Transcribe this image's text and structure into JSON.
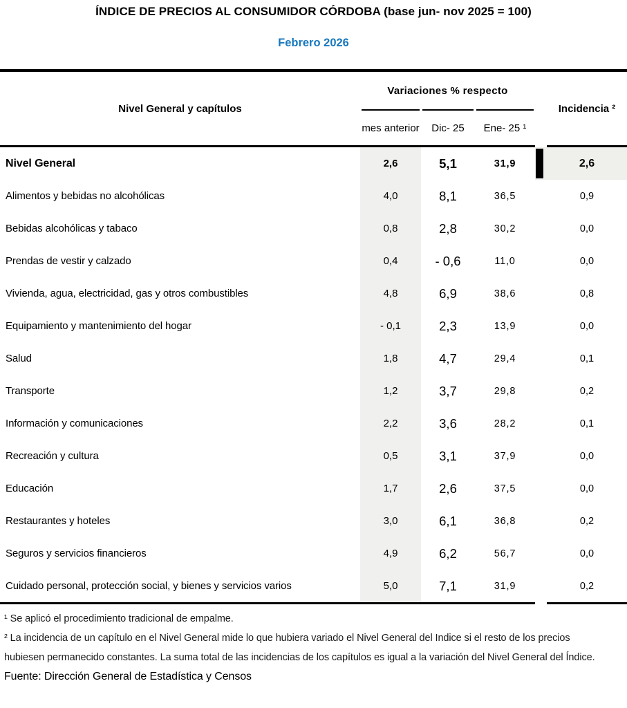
{
  "title": "ÍNDICE DE PRECIOS AL CONSUMIDOR CÓRDOBA (base jun- nov 2025 = 100)",
  "subtitle": "Febrero 2026",
  "table": {
    "row_header": "Nivel General y capítulos",
    "col_group_header": "Variaciones % respecto",
    "columns": [
      "mes anterior",
      "Dic- 25",
      "Ene- 25 ¹",
      "Incidencia ²"
    ],
    "rows": [
      {
        "label": "Nivel General",
        "mes_anterior": "2,6",
        "dic25": "5,1",
        "ene25": "31,9",
        "incidencia": "2,6",
        "emphasis": true
      },
      {
        "label": "Alimentos y bebidas no alcohólicas",
        "mes_anterior": "4,0",
        "dic25": "8,1",
        "ene25": "36,5",
        "incidencia": "0,9"
      },
      {
        "label": "Bebidas alcohólicas y tabaco",
        "mes_anterior": "0,8",
        "dic25": "2,8",
        "ene25": "30,2",
        "incidencia": "0,0"
      },
      {
        "label": "Prendas de vestir y calzado",
        "mes_anterior": "0,4",
        "dic25": "- 0,6",
        "ene25": "11,0",
        "incidencia": "0,0"
      },
      {
        "label": "Vivienda, agua, electricidad, gas y otros combustibles",
        "mes_anterior": "4,8",
        "dic25": "6,9",
        "ene25": "38,6",
        "incidencia": "0,8"
      },
      {
        "label": "Equipamiento y mantenimiento del hogar",
        "mes_anterior": "- 0,1",
        "dic25": "2,3",
        "ene25": "13,9",
        "incidencia": "0,0"
      },
      {
        "label": "Salud",
        "mes_anterior": "1,8",
        "dic25": "4,7",
        "ene25": "29,4",
        "incidencia": "0,1"
      },
      {
        "label": "Transporte",
        "mes_anterior": "1,2",
        "dic25": "3,7",
        "ene25": "29,8",
        "incidencia": "0,2"
      },
      {
        "label": "Información y comunicaciones",
        "mes_anterior": "2,2",
        "dic25": "3,6",
        "ene25": "28,2",
        "incidencia": "0,1"
      },
      {
        "label": "Recreación y cultura",
        "mes_anterior": "0,5",
        "dic25": "3,1",
        "ene25": "37,9",
        "incidencia": "0,0"
      },
      {
        "label": "Educación",
        "mes_anterior": "1,7",
        "dic25": "2,6",
        "ene25": "37,5",
        "incidencia": "0,0"
      },
      {
        "label": "Restaurantes y hoteles",
        "mes_anterior": "3,0",
        "dic25": "6,1",
        "ene25": "36,8",
        "incidencia": "0,2"
      },
      {
        "label": "Seguros y servicios financieros",
        "mes_anterior": "4,9",
        "dic25": "6,2",
        "ene25": "56,7",
        "incidencia": "0,0"
      },
      {
        "label": "Cuidado personal, protección social, y bienes y servicios varios",
        "mes_anterior": "5,0",
        "dic25": "7,1",
        "ene25": "31,9",
        "incidencia": "0,2"
      }
    ]
  },
  "footnotes": [
    "¹ Se aplicó el procedimiento tradicional de empalme.",
    "² La incidencia de un capítulo en el Nivel General mide lo que hubiera variado el Nivel General del Indice si el resto de los precios hubiesen permanecido constantes. La suma total de las incidencias de los capítulos es igual a la variación del Nivel General del Índice."
  ],
  "source": "Fuente: Dirección General de Estadística y Censos",
  "colors": {
    "accent_blue": "#1878be",
    "band_gray": "#f0f0ee",
    "marker_black": "#000000"
  }
}
